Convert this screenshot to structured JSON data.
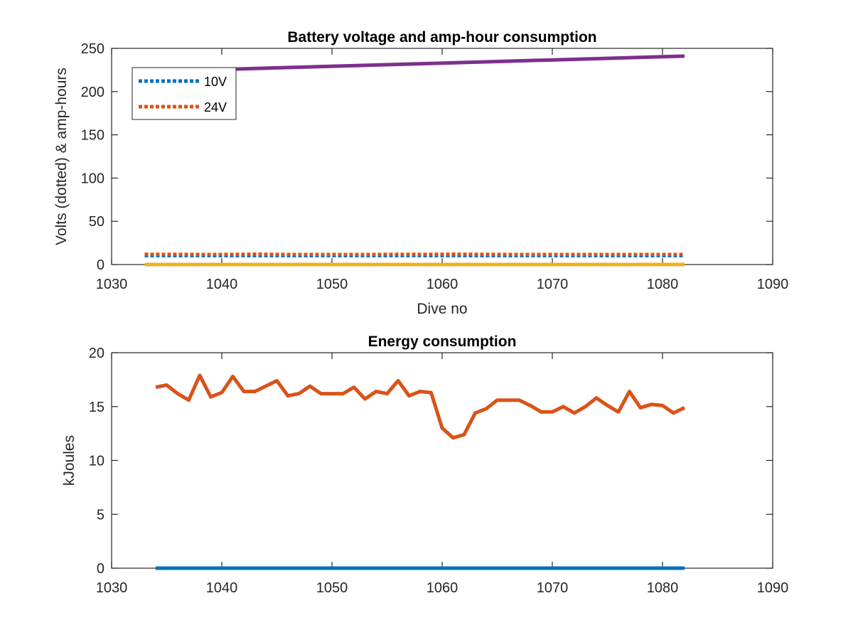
{
  "chart_data": [
    {
      "type": "line",
      "title": "Battery voltage and amp-hour consumption",
      "xlabel": "Dive no",
      "ylabel": "Volts (dotted) & amp-hours",
      "xlim": [
        1030,
        1090
      ],
      "ylim": [
        0,
        250
      ],
      "xticks": [
        "1030",
        "1040",
        "1050",
        "1060",
        "1070",
        "1080",
        "1090"
      ],
      "yticks": [
        "0",
        "50",
        "100",
        "150",
        "200",
        "250"
      ],
      "grid": false,
      "legend": "top-left",
      "series": [
        {
          "name": "10V",
          "style": "dotted",
          "color": "#0072BD",
          "x": [
            1033,
            1082
          ],
          "y": [
            10.2,
            10.2
          ]
        },
        {
          "name": "24V",
          "style": "dotted",
          "color": "#D95319",
          "x": [
            1033,
            1034,
            1036,
            1038,
            1040,
            1042,
            1043,
            1044,
            1046,
            1048,
            1050,
            1052,
            1054,
            1056,
            1058,
            1060,
            1061,
            1062,
            1064,
            1066,
            1068,
            1070,
            1072,
            1074,
            1076,
            1078,
            1080,
            1082
          ],
          "y": [
            12,
            11.9,
            11.9,
            11.8,
            11.8,
            11.9,
            12.2,
            11.9,
            11.8,
            11.8,
            11.8,
            11.8,
            11.8,
            11.9,
            11.9,
            12,
            12.2,
            12,
            11.9,
            11.8,
            11.8,
            11.8,
            11.8,
            11.8,
            11.8,
            11.8,
            11.8,
            11.8
          ]
        },
        {
          "style": "solid",
          "color": "#EDB120",
          "x": [
            1033,
            1082
          ],
          "y": [
            0,
            0
          ]
        },
        {
          "style": "solid",
          "color": "#7E2F8E",
          "x": [
            1033,
            1082
          ],
          "y": [
            223,
            241
          ]
        }
      ]
    },
    {
      "type": "line",
      "title": "Energy consumption",
      "xlabel": "",
      "ylabel": "kJoules",
      "xlim": [
        1030,
        1090
      ],
      "ylim": [
        0,
        20
      ],
      "xticks": [
        "1030",
        "1040",
        "1050",
        "1060",
        "1070",
        "1080",
        "1090"
      ],
      "yticks": [
        "0",
        "5",
        "10",
        "15",
        "20"
      ],
      "grid": false,
      "series": [
        {
          "style": "solid",
          "color": "#0072BD",
          "x": [
            1034,
            1082
          ],
          "y": [
            0,
            0
          ]
        },
        {
          "style": "solid",
          "color": "#D95319",
          "x": [
            1034,
            1035,
            1036,
            1037,
            1038,
            1039,
            1040,
            1041,
            1042,
            1043,
            1044,
            1045,
            1046,
            1047,
            1048,
            1049,
            1050,
            1051,
            1052,
            1053,
            1054,
            1055,
            1056,
            1057,
            1058,
            1059,
            1060,
            1061,
            1062,
            1063,
            1064,
            1065,
            1066,
            1067,
            1068,
            1069,
            1070,
            1071,
            1072,
            1073,
            1074,
            1075,
            1076,
            1077,
            1078,
            1079,
            1080,
            1081,
            1082
          ],
          "y": [
            16.8,
            17.0,
            16.2,
            15.6,
            17.9,
            15.9,
            16.3,
            17.8,
            16.4,
            16.4,
            16.9,
            17.4,
            16.0,
            16.2,
            16.9,
            16.2,
            16.2,
            16.2,
            16.8,
            15.7,
            16.4,
            16.2,
            17.4,
            16.0,
            16.4,
            16.3,
            13.0,
            12.1,
            12.4,
            14.4,
            14.8,
            15.6,
            15.6,
            15.6,
            15.1,
            14.5,
            14.5,
            15.0,
            14.4,
            15.0,
            15.8,
            15.1,
            14.5,
            16.4,
            14.9,
            15.2,
            15.1,
            14.4,
            14.9
          ]
        }
      ]
    }
  ]
}
